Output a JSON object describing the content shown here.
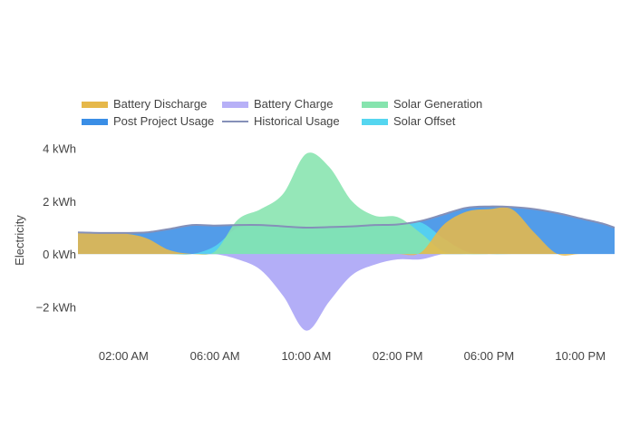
{
  "chart_data": {
    "type": "area",
    "ylabel": "Electricity",
    "y_unit": "kWh",
    "ylim": [
      -3.6,
      4.4
    ],
    "xlim": [
      0,
      23.5
    ],
    "grid": false,
    "legend_position": "top-left",
    "y_ticks": [
      {
        "value": 4,
        "label": "4 kWh"
      },
      {
        "value": 2,
        "label": "2 kWh"
      },
      {
        "value": 0,
        "label": "0 kWh"
      },
      {
        "value": -2,
        "label": "−2 kWh"
      }
    ],
    "x_ticks": [
      {
        "value": 2,
        "label": "02:00 AM"
      },
      {
        "value": 6,
        "label": "06:00 AM"
      },
      {
        "value": 10,
        "label": "10:00 AM"
      },
      {
        "value": 14,
        "label": "02:00 PM"
      },
      {
        "value": 18,
        "label": "06:00 PM"
      },
      {
        "value": 22,
        "label": "10:00 PM"
      }
    ],
    "x": [
      0,
      1,
      2,
      3,
      4,
      5,
      6,
      7,
      8,
      9,
      10,
      11,
      12,
      13,
      14,
      15,
      16,
      17,
      18,
      19,
      20,
      21,
      22,
      23,
      23.5
    ],
    "series": [
      {
        "name": "Post Project Usage",
        "kind": "fill",
        "color": "#3a8ee6",
        "values": [
          0.82,
          0.8,
          0.8,
          0.82,
          0.95,
          1.1,
          1.08,
          1.1,
          1.1,
          1.05,
          1.0,
          1.02,
          1.05,
          1.1,
          1.12,
          1.25,
          1.5,
          1.75,
          1.8,
          1.78,
          1.7,
          1.55,
          1.35,
          1.15,
          1.0
        ]
      },
      {
        "name": "Solar Offset",
        "kind": "fill",
        "color": "#55d6f0",
        "values": [
          0,
          0,
          0,
          0,
          0,
          0,
          0.3,
          1.0,
          1.1,
          1.05,
          1.0,
          1.02,
          1.05,
          1.1,
          1.12,
          1.2,
          0.6,
          0.1,
          0,
          0,
          0,
          0,
          0,
          0,
          0
        ]
      },
      {
        "name": "Solar Generation",
        "kind": "fill",
        "color": "#86e4ae",
        "values": [
          0,
          0,
          0,
          0,
          0,
          0,
          0.1,
          1.3,
          1.7,
          2.3,
          3.8,
          3.3,
          2.0,
          1.45,
          1.4,
          0.8,
          0.1,
          0,
          0,
          0,
          0,
          0,
          0,
          0,
          0
        ]
      },
      {
        "name": "Battery Charge",
        "kind": "fill",
        "color": "#a9a3f6",
        "values": [
          0,
          0,
          0,
          0,
          0,
          0,
          0,
          -0.2,
          -0.6,
          -1.6,
          -2.9,
          -1.8,
          -0.8,
          -0.4,
          -0.2,
          -0.2,
          0,
          0,
          0,
          0,
          0,
          0,
          0,
          0,
          0
        ]
      },
      {
        "name": "Battery Discharge",
        "kind": "fill",
        "color": "#e6b84a",
        "values": [
          0.82,
          0.8,
          0.78,
          0.6,
          0.15,
          0,
          0,
          0,
          0,
          0,
          0,
          0,
          0,
          0,
          0,
          0.05,
          1.1,
          1.6,
          1.7,
          1.7,
          0.8,
          0,
          0,
          0,
          0
        ]
      },
      {
        "name": "Historical Usage",
        "kind": "line",
        "color": "#8590b8",
        "values": [
          0.82,
          0.8,
          0.8,
          0.82,
          0.95,
          1.1,
          1.08,
          1.1,
          1.1,
          1.05,
          1.0,
          1.02,
          1.05,
          1.1,
          1.12,
          1.25,
          1.5,
          1.75,
          1.8,
          1.78,
          1.7,
          1.55,
          1.35,
          1.15,
          1.0
        ]
      }
    ],
    "legend": [
      {
        "name": "Battery Discharge",
        "color": "#e6b84a",
        "kind": "fill"
      },
      {
        "name": "Battery Charge",
        "color": "#b7b0f7",
        "kind": "fill"
      },
      {
        "name": "Solar Generation",
        "color": "#86e4ae",
        "kind": "fill"
      },
      {
        "name": "Post Project Usage",
        "color": "#3a8ee6",
        "kind": "fill"
      },
      {
        "name": "Historical Usage",
        "color": "#8590b8",
        "kind": "line"
      },
      {
        "name": "Solar Offset",
        "color": "#55d6f0",
        "kind": "fill"
      }
    ]
  }
}
